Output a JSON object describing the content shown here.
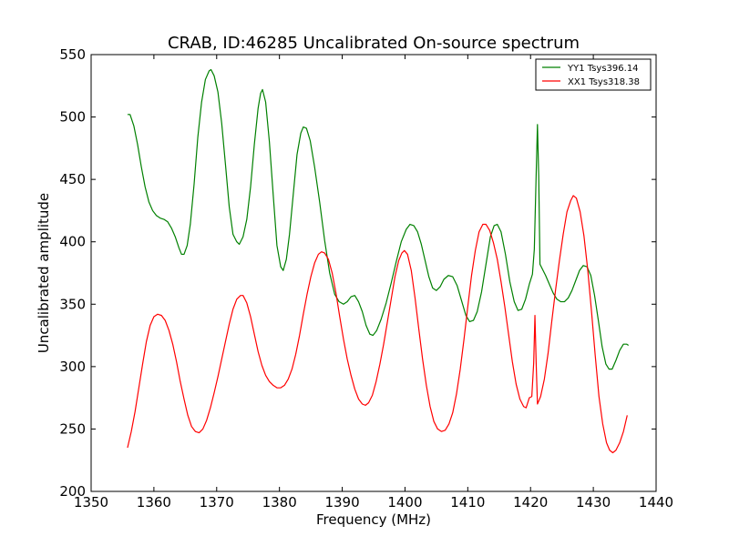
{
  "chart_data": {
    "type": "line",
    "title": "CRAB, ID:46285 Uncalibrated On-source spectrum",
    "xlabel": "Frequency (MHz)",
    "ylabel": "Uncalibrated amplitude",
    "xlim": [
      1350,
      1440
    ],
    "ylim": [
      200,
      550
    ],
    "xticks": [
      1350,
      1360,
      1370,
      1380,
      1390,
      1400,
      1410,
      1420,
      1430,
      1440
    ],
    "yticks": [
      200,
      250,
      300,
      350,
      400,
      450,
      500,
      550
    ],
    "grid": false,
    "legend_position": "top-right",
    "series": [
      {
        "name": "YY1 Tsys396.14",
        "color": "#008000",
        "points": [
          [
            1355.8,
            502
          ],
          [
            1356.2,
            502
          ],
          [
            1356.8,
            493
          ],
          [
            1357.4,
            478
          ],
          [
            1358,
            460
          ],
          [
            1358.6,
            444
          ],
          [
            1359.2,
            432
          ],
          [
            1359.8,
            425
          ],
          [
            1360.4,
            421
          ],
          [
            1361,
            419
          ],
          [
            1361.6,
            418
          ],
          [
            1362.2,
            416
          ],
          [
            1362.8,
            411
          ],
          [
            1363.4,
            404
          ],
          [
            1364,
            395
          ],
          [
            1364.4,
            390
          ],
          [
            1364.8,
            390
          ],
          [
            1365.3,
            397
          ],
          [
            1365.8,
            414
          ],
          [
            1366.4,
            446
          ],
          [
            1367,
            484
          ],
          [
            1367.6,
            512
          ],
          [
            1368.2,
            530
          ],
          [
            1368.8,
            537
          ],
          [
            1369.1,
            538
          ],
          [
            1369.6,
            533
          ],
          [
            1370.2,
            520
          ],
          [
            1370.8,
            495
          ],
          [
            1371.4,
            462
          ],
          [
            1372,
            428
          ],
          [
            1372.6,
            406
          ],
          [
            1373.2,
            400
          ],
          [
            1373.6,
            398
          ],
          [
            1374.2,
            404
          ],
          [
            1374.8,
            418
          ],
          [
            1375.4,
            444
          ],
          [
            1376,
            478
          ],
          [
            1376.6,
            507
          ],
          [
            1377,
            519
          ],
          [
            1377.3,
            522
          ],
          [
            1377.8,
            512
          ],
          [
            1378.4,
            480
          ],
          [
            1379,
            438
          ],
          [
            1379.6,
            397
          ],
          [
            1380.2,
            380
          ],
          [
            1380.6,
            377
          ],
          [
            1381.1,
            386
          ],
          [
            1381.6,
            406
          ],
          [
            1382.2,
            438
          ],
          [
            1382.8,
            470
          ],
          [
            1383.4,
            487
          ],
          [
            1383.8,
            492
          ],
          [
            1384.3,
            491
          ],
          [
            1384.9,
            481
          ],
          [
            1385.6,
            460
          ],
          [
            1386.4,
            432
          ],
          [
            1387.2,
            401
          ],
          [
            1388,
            375
          ],
          [
            1388.8,
            358
          ],
          [
            1389.5,
            352
          ],
          [
            1390.2,
            350
          ],
          [
            1390.8,
            352
          ],
          [
            1391.4,
            356
          ],
          [
            1392,
            357
          ],
          [
            1392.6,
            352
          ],
          [
            1393.2,
            344
          ],
          [
            1393.8,
            333
          ],
          [
            1394.4,
            326
          ],
          [
            1394.9,
            325
          ],
          [
            1395.5,
            329
          ],
          [
            1396.2,
            338
          ],
          [
            1397,
            351
          ],
          [
            1397.8,
            367
          ],
          [
            1398.6,
            384
          ],
          [
            1399.4,
            400
          ],
          [
            1400.2,
            410
          ],
          [
            1400.8,
            414
          ],
          [
            1401.4,
            413
          ],
          [
            1402,
            408
          ],
          [
            1402.6,
            398
          ],
          [
            1403.2,
            385
          ],
          [
            1403.8,
            372
          ],
          [
            1404.4,
            363
          ],
          [
            1405,
            361
          ],
          [
            1405.6,
            364
          ],
          [
            1406.2,
            370
          ],
          [
            1406.9,
            373
          ],
          [
            1407.6,
            372
          ],
          [
            1408.3,
            365
          ],
          [
            1409,
            353
          ],
          [
            1409.7,
            341
          ],
          [
            1410.3,
            336
          ],
          [
            1410.9,
            337
          ],
          [
            1411.5,
            344
          ],
          [
            1412.2,
            360
          ],
          [
            1412.9,
            382
          ],
          [
            1413.6,
            404
          ],
          [
            1414.2,
            413
          ],
          [
            1414.7,
            414
          ],
          [
            1415.3,
            408
          ],
          [
            1416,
            390
          ],
          [
            1416.7,
            368
          ],
          [
            1417.4,
            352
          ],
          [
            1418,
            345
          ],
          [
            1418.6,
            346
          ],
          [
            1419.2,
            354
          ],
          [
            1419.8,
            366
          ],
          [
            1420.3,
            374
          ],
          [
            1420.6,
            394
          ],
          [
            1420.9,
            455
          ],
          [
            1421.1,
            494
          ],
          [
            1421.3,
            453
          ],
          [
            1421.5,
            382
          ],
          [
            1421.8,
            379
          ],
          [
            1422.4,
            373
          ],
          [
            1423,
            366
          ],
          [
            1423.6,
            359
          ],
          [
            1424.2,
            354
          ],
          [
            1424.8,
            352
          ],
          [
            1425.4,
            352
          ],
          [
            1426,
            355
          ],
          [
            1426.6,
            361
          ],
          [
            1427.2,
            369
          ],
          [
            1427.8,
            377
          ],
          [
            1428.4,
            381
          ],
          [
            1429,
            380
          ],
          [
            1429.6,
            373
          ],
          [
            1430.2,
            357
          ],
          [
            1430.8,
            337
          ],
          [
            1431.4,
            316
          ],
          [
            1432,
            302
          ],
          [
            1432.5,
            298
          ],
          [
            1433,
            298
          ],
          [
            1433.6,
            305
          ],
          [
            1434.2,
            313
          ],
          [
            1434.8,
            318
          ],
          [
            1435.3,
            318
          ],
          [
            1435.6,
            317
          ]
        ]
      },
      {
        "name": "XX1 Tsys318.38",
        "color": "#ff0000",
        "points": [
          [
            1355.8,
            235
          ],
          [
            1356.4,
            248
          ],
          [
            1357,
            264
          ],
          [
            1357.6,
            283
          ],
          [
            1358.2,
            302
          ],
          [
            1358.8,
            320
          ],
          [
            1359.4,
            333
          ],
          [
            1360,
            340
          ],
          [
            1360.6,
            342
          ],
          [
            1361.2,
            341
          ],
          [
            1361.8,
            337
          ],
          [
            1362.4,
            329
          ],
          [
            1363,
            318
          ],
          [
            1363.6,
            304
          ],
          [
            1364.2,
            288
          ],
          [
            1364.8,
            274
          ],
          [
            1365.4,
            261
          ],
          [
            1366,
            252
          ],
          [
            1366.6,
            248
          ],
          [
            1367.2,
            247
          ],
          [
            1367.8,
            250
          ],
          [
            1368.4,
            257
          ],
          [
            1369,
            267
          ],
          [
            1369.6,
            279
          ],
          [
            1370.2,
            292
          ],
          [
            1370.8,
            306
          ],
          [
            1371.4,
            320
          ],
          [
            1372,
            334
          ],
          [
            1372.6,
            346
          ],
          [
            1373.2,
            354
          ],
          [
            1373.8,
            357
          ],
          [
            1374.2,
            357
          ],
          [
            1374.8,
            351
          ],
          [
            1375.4,
            340
          ],
          [
            1376,
            326
          ],
          [
            1376.6,
            312
          ],
          [
            1377.2,
            301
          ],
          [
            1377.8,
            293
          ],
          [
            1378.4,
            288
          ],
          [
            1379,
            285
          ],
          [
            1379.6,
            283
          ],
          [
            1380.2,
            283
          ],
          [
            1380.8,
            285
          ],
          [
            1381.4,
            290
          ],
          [
            1382,
            298
          ],
          [
            1382.6,
            310
          ],
          [
            1383.2,
            325
          ],
          [
            1383.8,
            342
          ],
          [
            1384.4,
            358
          ],
          [
            1385,
            372
          ],
          [
            1385.6,
            383
          ],
          [
            1386.2,
            390
          ],
          [
            1386.7,
            392
          ],
          [
            1387.2,
            391
          ],
          [
            1387.8,
            386
          ],
          [
            1388.4,
            375
          ],
          [
            1389,
            359
          ],
          [
            1389.6,
            340
          ],
          [
            1390.2,
            322
          ],
          [
            1390.8,
            306
          ],
          [
            1391.4,
            293
          ],
          [
            1392,
            282
          ],
          [
            1392.6,
            274
          ],
          [
            1393.2,
            270
          ],
          [
            1393.7,
            269
          ],
          [
            1394.2,
            271
          ],
          [
            1394.8,
            277
          ],
          [
            1395.4,
            288
          ],
          [
            1396,
            302
          ],
          [
            1396.6,
            318
          ],
          [
            1397.2,
            336
          ],
          [
            1397.8,
            354
          ],
          [
            1398.4,
            372
          ],
          [
            1399,
            385
          ],
          [
            1399.5,
            391
          ],
          [
            1399.9,
            393
          ],
          [
            1400.4,
            390
          ],
          [
            1401,
            377
          ],
          [
            1401.6,
            355
          ],
          [
            1402.2,
            330
          ],
          [
            1402.8,
            306
          ],
          [
            1403.4,
            285
          ],
          [
            1404,
            268
          ],
          [
            1404.6,
            256
          ],
          [
            1405.2,
            250
          ],
          [
            1405.8,
            248
          ],
          [
            1406.4,
            249
          ],
          [
            1407,
            254
          ],
          [
            1407.6,
            263
          ],
          [
            1408.2,
            278
          ],
          [
            1408.8,
            298
          ],
          [
            1409.4,
            322
          ],
          [
            1410,
            348
          ],
          [
            1410.6,
            373
          ],
          [
            1411.2,
            393
          ],
          [
            1411.8,
            408
          ],
          [
            1412.4,
            414
          ],
          [
            1412.9,
            414
          ],
          [
            1413.5,
            409
          ],
          [
            1414.1,
            399
          ],
          [
            1414.7,
            386
          ],
          [
            1415.3,
            368
          ],
          [
            1415.9,
            348
          ],
          [
            1416.5,
            326
          ],
          [
            1417.1,
            304
          ],
          [
            1417.7,
            286
          ],
          [
            1418.3,
            274
          ],
          [
            1418.9,
            268
          ],
          [
            1419.3,
            267
          ],
          [
            1419.8,
            275
          ],
          [
            1420.2,
            276
          ],
          [
            1420.5,
            303
          ],
          [
            1420.7,
            341
          ],
          [
            1420.9,
            302
          ],
          [
            1421.1,
            270
          ],
          [
            1421.6,
            276
          ],
          [
            1422.2,
            290
          ],
          [
            1422.8,
            311
          ],
          [
            1423.4,
            337
          ],
          [
            1424,
            362
          ],
          [
            1424.6,
            385
          ],
          [
            1425.2,
            406
          ],
          [
            1425.8,
            424
          ],
          [
            1426.4,
            433
          ],
          [
            1426.8,
            437
          ],
          [
            1427.3,
            435
          ],
          [
            1427.9,
            424
          ],
          [
            1428.5,
            405
          ],
          [
            1429.1,
            378
          ],
          [
            1429.7,
            345
          ],
          [
            1430.3,
            309
          ],
          [
            1430.9,
            276
          ],
          [
            1431.5,
            254
          ],
          [
            1432.1,
            239
          ],
          [
            1432.6,
            233
          ],
          [
            1433.1,
            231
          ],
          [
            1433.6,
            233
          ],
          [
            1434.2,
            239
          ],
          [
            1434.8,
            248
          ],
          [
            1435.4,
            261
          ]
        ]
      }
    ]
  }
}
